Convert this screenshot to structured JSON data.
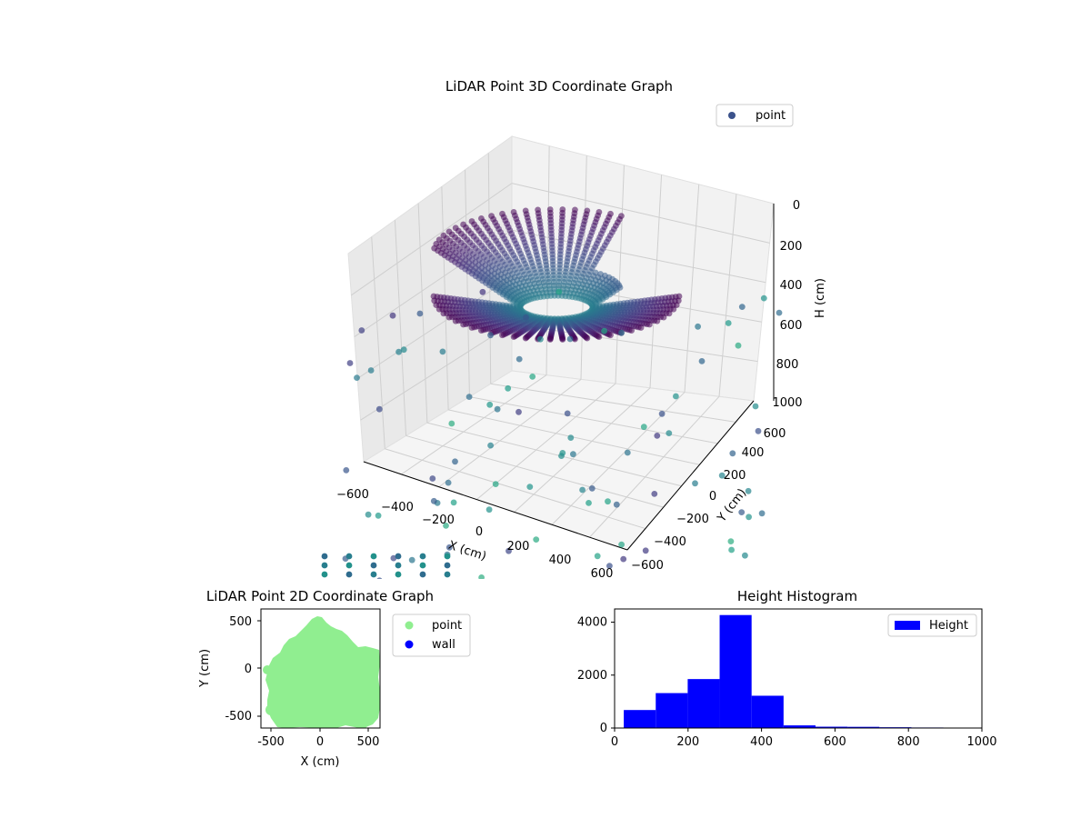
{
  "chart_data": [
    {
      "type": "scatter",
      "projection": "3d",
      "title": "LiDAR Point 3D Coordinate Graph",
      "xlabel": "X (cm)",
      "ylabel": "Y (cm)",
      "zlabel": "H (cm)",
      "xlim": [
        -700,
        700
      ],
      "ylim": [
        -700,
        700
      ],
      "zlim": [
        1000,
        0
      ],
      "x_ticks": [
        "−600",
        "−400",
        "−200",
        "0",
        "200",
        "400",
        "600"
      ],
      "y_ticks": [
        "−600",
        "−400",
        "−200",
        "0",
        "200",
        "400",
        "600"
      ],
      "z_ticks": [
        "0",
        "200",
        "400",
        "600",
        "800",
        "1000"
      ],
      "colormap": "viridis",
      "legend": {
        "position": "upper-right",
        "entries": [
          {
            "label": "point",
            "color": "#3b528b"
          }
        ]
      },
      "grid": true
    },
    {
      "type": "scatter",
      "title": "LiDAR Point 2D Coordinate Graph",
      "xlabel": "X (cm)",
      "ylabel": "Y (cm)",
      "xlim": [
        -620,
        620
      ],
      "ylim": [
        -620,
        620
      ],
      "x_ticks": [
        -500,
        0,
        500
      ],
      "y_ticks": [
        500,
        0,
        -500
      ],
      "series": [
        {
          "name": "point",
          "color": "#90ee90"
        },
        {
          "name": "wall",
          "color": "#0000ff"
        }
      ],
      "legend": {
        "position": "outside-right"
      }
    },
    {
      "type": "bar",
      "subtype": "histogram",
      "title": "Height Histogram",
      "xlim": [
        0,
        1000
      ],
      "ylim": [
        0,
        4500
      ],
      "x_ticks": [
        0,
        200,
        400,
        600,
        800,
        1000
      ],
      "y_ticks": [
        0,
        2000,
        4000
      ],
      "bin_edges": [
        25,
        112,
        199,
        286,
        373,
        460,
        547,
        634,
        721,
        808,
        895
      ],
      "values": [
        680,
        1320,
        1850,
        4270,
        1220,
        100,
        50,
        45,
        30,
        20
      ],
      "series": [
        {
          "name": "Height",
          "color": "#0000ff"
        }
      ],
      "legend": {
        "position": "upper-right"
      }
    }
  ]
}
